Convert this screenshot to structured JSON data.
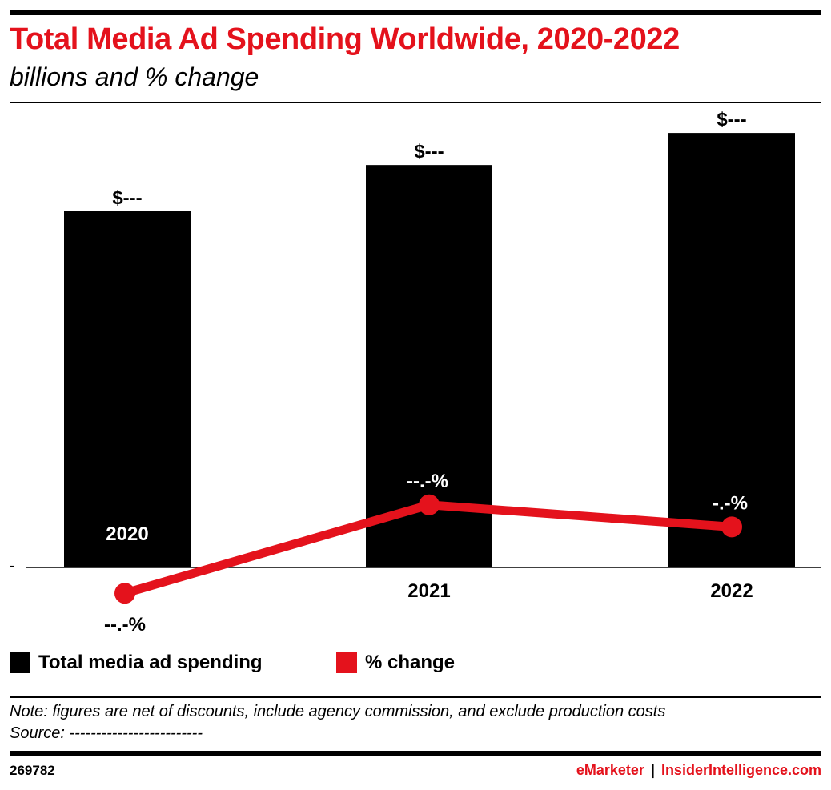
{
  "header": {
    "title": "Total Media Ad Spending Worldwide, 2020-2022",
    "subtitle": "billions and % change"
  },
  "colors": {
    "accent": "#e4121c",
    "bar": "#000000",
    "line": "#e4121c"
  },
  "chart_data": {
    "type": "bar",
    "title": "Total Media Ad Spending Worldwide, 2020-2022",
    "subtitle": "billions and % change",
    "categories": [
      "2020",
      "2021",
      "2022"
    ],
    "y_tick_labels": [
      "-"
    ],
    "grid": false,
    "legend_position": "bottom-left",
    "series": [
      {
        "name": "Total media ad spending",
        "type": "bar",
        "values": [
          1.0,
          1.13,
          1.22
        ],
        "data_labels": [
          "$---",
          "$---",
          "$---"
        ]
      },
      {
        "name": "% change",
        "type": "line",
        "values": [
          -0.07,
          0.17,
          0.11
        ],
        "data_labels": [
          "--.-%",
          "--.-%",
          "-.-%"
        ]
      }
    ]
  },
  "legend": {
    "items": [
      {
        "label": "Total media ad spending",
        "color": "#000000"
      },
      {
        "label": "% change",
        "color": "#e4121c"
      }
    ]
  },
  "footer": {
    "note": "Note: figures are net of discounts, include agency commission, and exclude production costs",
    "source": "Source: -------------------------",
    "chart_id": "269782",
    "brand_left": "eMarketer",
    "separator": "|",
    "brand_right": "InsiderIntelligence.com"
  }
}
